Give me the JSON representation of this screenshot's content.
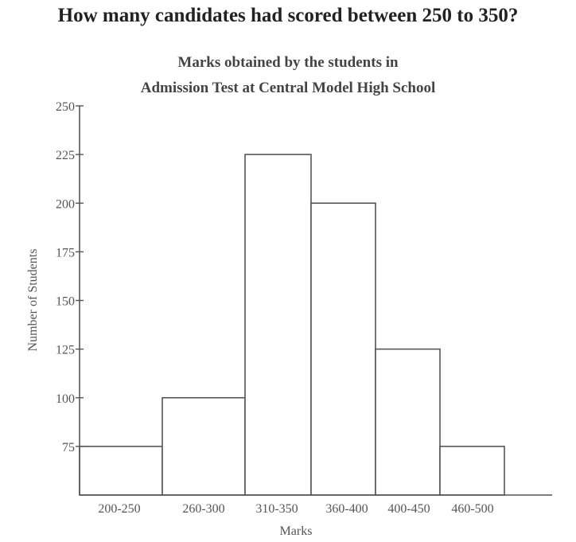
{
  "question": "How many candidates had scored between 250 to 350?",
  "chart_data": {
    "type": "bar",
    "title": [
      "Marks obtained by the students in",
      "Admission Test at Central Model High School"
    ],
    "xlabel": "Marks",
    "ylabel": "Number of Students",
    "categories": [
      "200-250",
      "260-300",
      "310-350",
      "360-400",
      "400-450",
      "460-500"
    ],
    "values": [
      75,
      100,
      225,
      200,
      125,
      75
    ],
    "ylim": [
      50,
      250
    ],
    "yticks": [
      75,
      100,
      125,
      150,
      175,
      200,
      225,
      250
    ],
    "grid": false,
    "colors": {
      "bar_fill": "#ffffff",
      "bar_stroke": "#555555"
    }
  }
}
